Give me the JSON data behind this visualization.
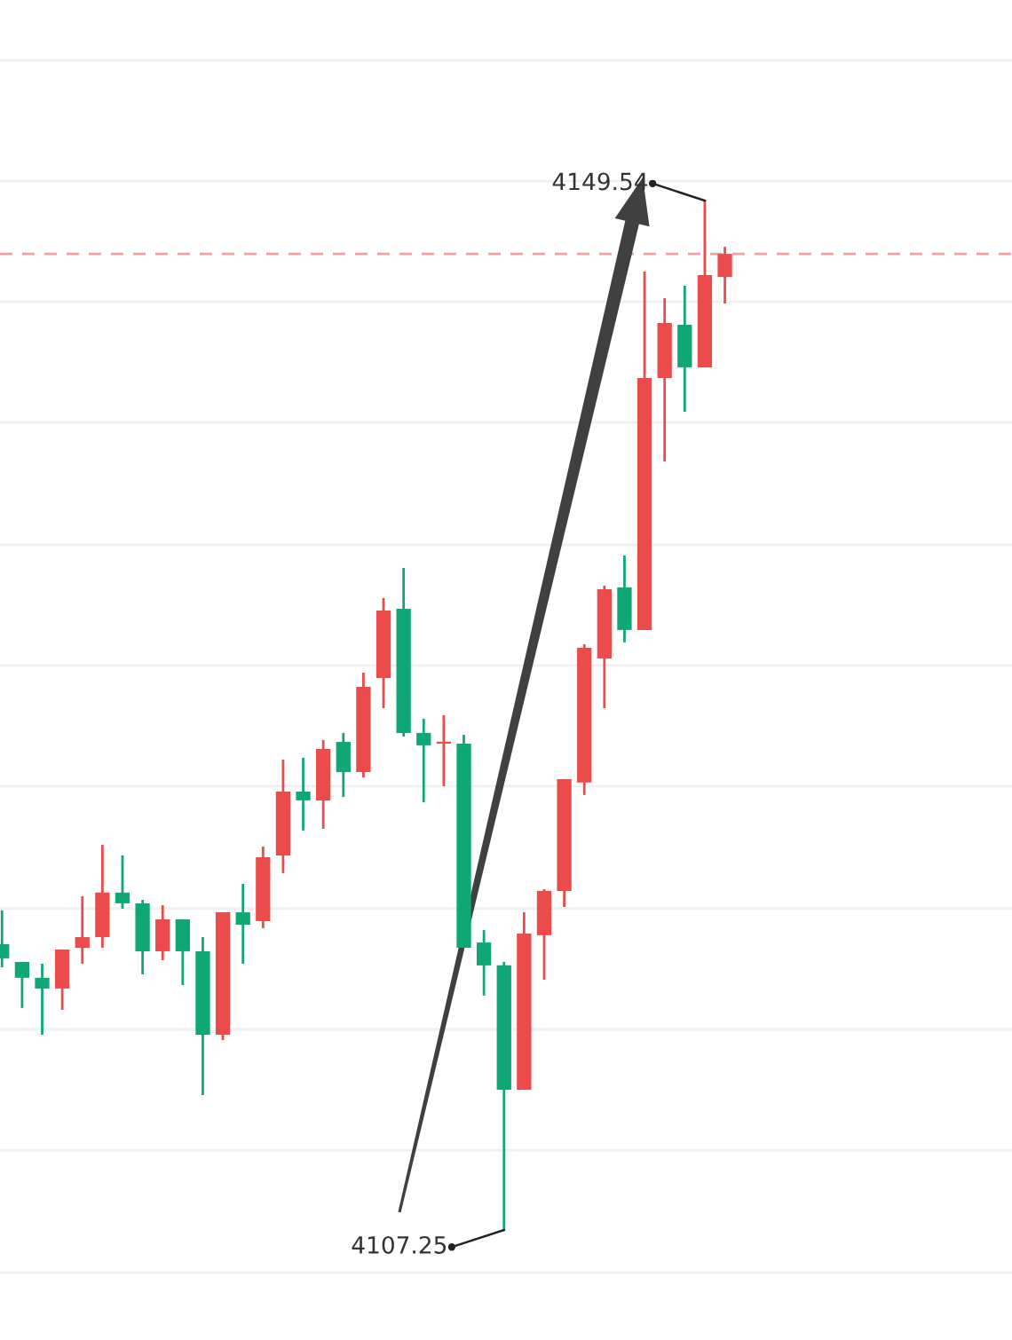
{
  "chart_data": {
    "type": "candlestick",
    "categories": [
      null,
      null,
      null,
      null,
      null,
      null,
      null,
      null,
      null,
      null,
      null,
      null,
      null,
      null,
      null,
      null,
      null,
      null,
      null,
      null,
      null,
      null,
      null,
      null,
      null,
      null,
      null,
      null,
      null,
      null,
      null,
      null,
      null,
      null,
      null,
      null,
      null
    ],
    "ohlc": [
      [
        4118.99,
        4120.38,
        4118.04,
        4118.41
      ],
      [
        4118.26,
        4118.26,
        4116.37,
        4117.61
      ],
      [
        4117.61,
        4118.19,
        4115.27,
        4117.17
      ],
      [
        4117.17,
        4118.77,
        4116.29,
        4118.77
      ],
      [
        4118.84,
        4120.96,
        4118.19,
        4119.28
      ],
      [
        4119.28,
        4123.07,
        4118.84,
        4121.11
      ],
      [
        4121.11,
        4122.64,
        4120.45,
        4120.67
      ],
      [
        4120.67,
        4120.81,
        4117.75,
        4118.7
      ],
      [
        4118.7,
        4120.59,
        4118.33,
        4120.01
      ],
      [
        4120.01,
        4120.01,
        4117.31,
        4118.7
      ],
      [
        4118.7,
        4119.28,
        4112.79,
        4115.27
      ],
      [
        4115.27,
        4120.3,
        4115.05,
        4120.3
      ],
      [
        4120.3,
        4121.47,
        4118.19,
        4119.79
      ],
      [
        4119.94,
        4123.0,
        4119.65,
        4122.56
      ],
      [
        4122.64,
        4126.57,
        4121.91,
        4125.26
      ],
      [
        4125.26,
        4126.65,
        4123.66,
        4124.9
      ],
      [
        4124.9,
        4127.38,
        4123.73,
        4127.01
      ],
      [
        4127.3,
        4127.67,
        4125.04,
        4126.06
      ],
      [
        4126.06,
        4130.15,
        4125.84,
        4129.56
      ],
      [
        4129.93,
        4133.21,
        4128.69,
        4132.7
      ],
      [
        4132.77,
        4134.45,
        4127.52,
        4127.67
      ],
      [
        4127.67,
        4128.25,
        4124.82,
        4127.16
      ],
      [
        4127.23,
        4128.4,
        4125.48,
        4127.3
      ],
      [
        4127.23,
        4127.59,
        4118.84,
        4118.84
      ],
      [
        4119.06,
        4119.57,
        4116.88,
        4118.12
      ],
      [
        4118.12,
        4118.26,
        4107.25,
        4113.01
      ],
      [
        4113.01,
        4120.3,
        4113.01,
        4119.43
      ],
      [
        4119.36,
        4121.25,
        4117.53,
        4121.18
      ],
      [
        4121.18,
        4125.77,
        4120.52,
        4125.77
      ],
      [
        4125.63,
        4131.31,
        4125.12,
        4131.17
      ],
      [
        4130.73,
        4133.72,
        4128.69,
        4133.57
      ],
      [
        4133.65,
        4134.96,
        4131.39,
        4131.9
      ],
      [
        4131.9,
        4146.62,
        4131.9,
        4142.25
      ],
      [
        4142.25,
        4145.53,
        4138.82,
        4144.51
      ],
      [
        4144.44,
        4146.04,
        4140.86,
        4142.69
      ],
      [
        4142.69,
        4149.54,
        4142.69,
        4146.48
      ],
      [
        4146.4,
        4147.64,
        4145.31,
        4147.35
      ]
    ],
    "colors": [
      "#0fa776",
      "#0fa776",
      "#0fa776",
      "#eb4b4b",
      "#eb4b4b",
      "#eb4b4b",
      "#0fa776",
      "#0fa776",
      "#eb4b4b",
      "#0fa776",
      "#0fa776",
      "#eb4b4b",
      "#0fa776",
      "#eb4b4b",
      "#eb4b4b",
      "#0fa776",
      "#eb4b4b",
      "#0fa776",
      "#eb4b4b",
      "#eb4b4b",
      "#0fa776",
      "#0fa776",
      "#eb4b4b",
      "#0fa776",
      "#0fa776",
      "#0fa776",
      "#eb4b4b",
      "#eb4b4b",
      "#eb4b4b",
      "#eb4b4b",
      "#eb4b4b",
      "#0fa776",
      "#eb4b4b",
      "#eb4b4b",
      "#0fa776",
      "#eb4b4b",
      "#eb4b4b"
    ],
    "ylim": [
      4102.73,
      4157.78
    ],
    "yticks": [
      {
        "value": 4155.3,
        "label": null
      },
      {
        "value": 4150.34,
        "label": null
      },
      {
        "value": 4145.38,
        "label": null
      },
      {
        "value": 4140.43,
        "label": null
      },
      {
        "value": 4135.39,
        "label": null
      },
      {
        "value": 4130.44,
        "label": null
      },
      {
        "value": 4125.48,
        "label": null
      },
      {
        "value": 4120.45,
        "label": null
      },
      {
        "value": 4115.49,
        "label": null
      },
      {
        "value": 4110.53,
        "label": null
      },
      {
        "value": 4105.5,
        "label": null
      }
    ],
    "grid": "y",
    "ref_lines": [
      {
        "axis": "y",
        "value": 4147.35,
        "color": "#f0a0a0",
        "line_style": "dashed"
      }
    ],
    "annotations": [
      "4149.54",
      "4107.25"
    ]
  }
}
